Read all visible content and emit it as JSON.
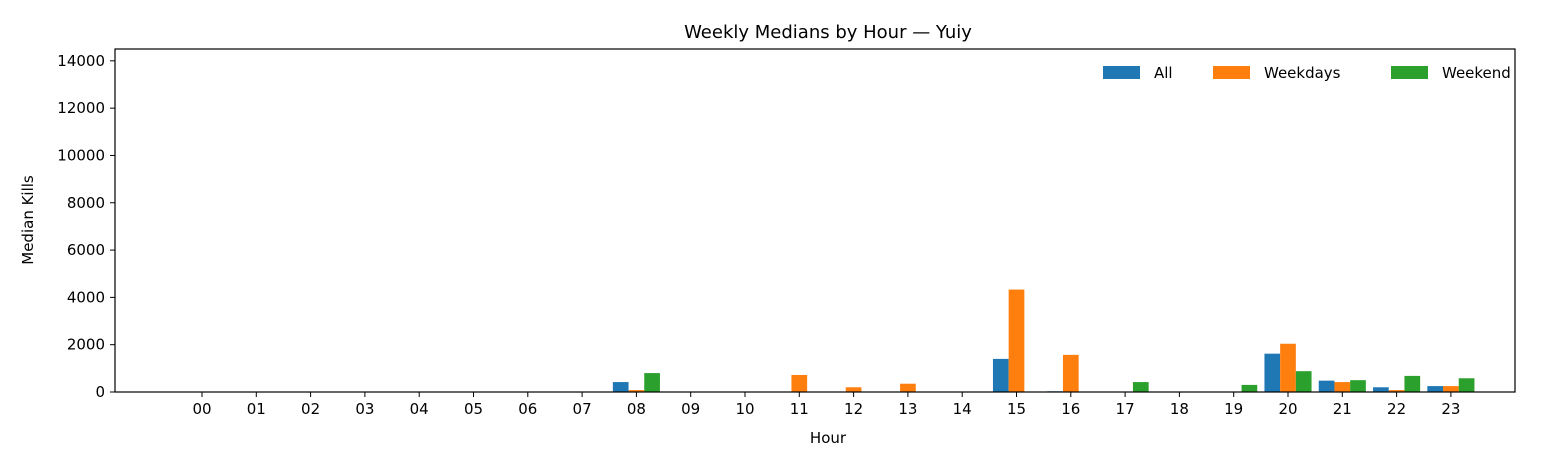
{
  "chart_data": {
    "type": "bar",
    "title": "Weekly Medians by Hour — Yuiy",
    "xlabel": "Hour",
    "ylabel": "Median Kills",
    "ylim": [
      0,
      14500
    ],
    "yticks": [
      0,
      2000,
      4000,
      6000,
      8000,
      10000,
      12000,
      14000
    ],
    "categories": [
      "00",
      "01",
      "02",
      "03",
      "04",
      "05",
      "06",
      "07",
      "08",
      "09",
      "10",
      "11",
      "12",
      "13",
      "14",
      "15",
      "16",
      "17",
      "18",
      "19",
      "20",
      "21",
      "22",
      "23"
    ],
    "legend_position": "top-right",
    "grid": false,
    "series": [
      {
        "name": "All",
        "color": "#1f77b4",
        "values": [
          0,
          0,
          0,
          0,
          0,
          0,
          0,
          0,
          420,
          0,
          0,
          0,
          0,
          0,
          0,
          1400,
          30,
          0,
          0,
          0,
          1620,
          480,
          200,
          250
        ]
      },
      {
        "name": "Weekdays",
        "color": "#ff7f0e",
        "values": [
          0,
          0,
          0,
          0,
          0,
          0,
          0,
          0,
          80,
          0,
          0,
          720,
          200,
          350,
          0,
          4330,
          1570,
          0,
          0,
          0,
          2040,
          420,
          80,
          250
        ]
      },
      {
        "name": "Weekend",
        "color": "#2ca02c",
        "values": [
          0,
          0,
          0,
          0,
          0,
          0,
          0,
          0,
          800,
          0,
          0,
          0,
          0,
          0,
          0,
          0,
          0,
          420,
          0,
          300,
          880,
          500,
          680,
          580
        ]
      }
    ]
  }
}
